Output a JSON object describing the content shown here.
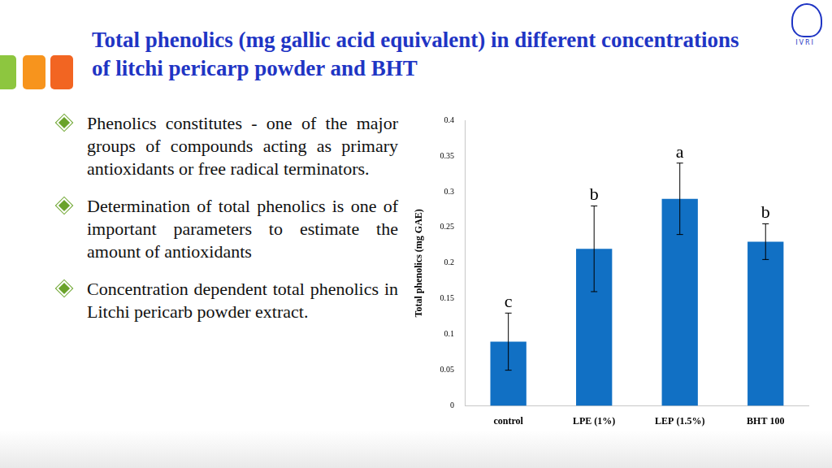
{
  "title": "Total phenolics (mg gallic acid equivalent) in different concentrations of litchi pericarp powder and BHT",
  "logo": "IVRI",
  "bullets": [
    "Phenolics constitutes - one of the major groups of compounds acting as primary antioxidants or free radical terminators.",
    "Determination of total phenolics is one of important parameters to estimate the amount of antioxidants",
    "Concentration dependent total phenolics in Litchi pericarb powder extract."
  ],
  "chart_data": {
    "type": "bar",
    "y_label": "Total phenolics (mg GAE)",
    "categories": [
      "control",
      "LPE (1%)",
      "LEP (1.5%)",
      "BHT 100"
    ],
    "values": [
      0.09,
      0.22,
      0.29,
      0.23
    ],
    "errors": [
      0.04,
      0.06,
      0.05,
      0.025
    ],
    "annotations": [
      "c",
      "b",
      "a",
      "b"
    ],
    "color": "#1170c4",
    "ylim": [
      0,
      0.4
    ],
    "yticks": [
      0,
      0.05,
      0.1,
      0.15,
      0.2,
      0.25,
      0.3,
      0.35,
      0.4
    ],
    "grid": false
  }
}
